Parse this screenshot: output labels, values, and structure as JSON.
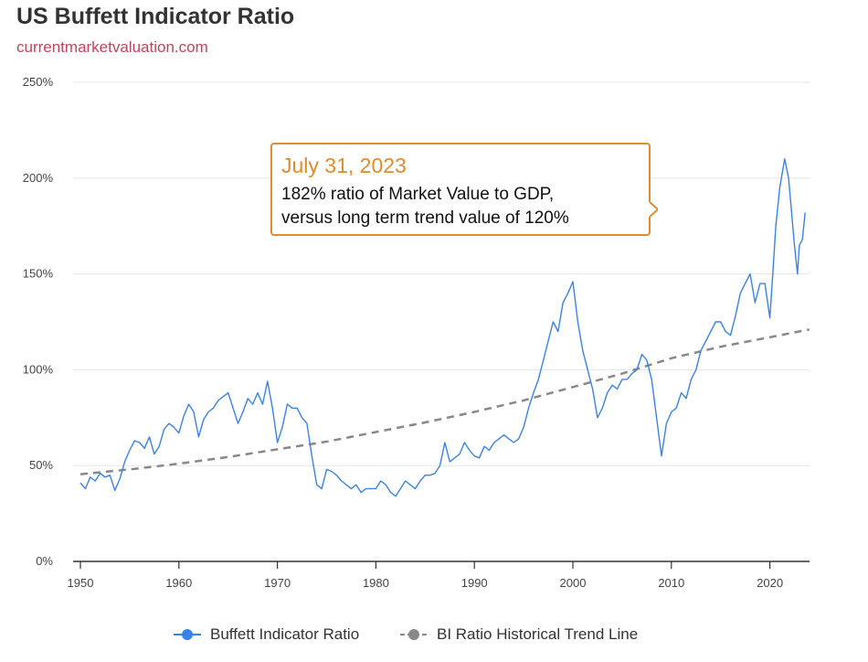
{
  "title": "US Buffett Indicator Ratio",
  "subtitle": "currentmarketvaluation.com",
  "colors": {
    "series": "#3b82e6",
    "trend": "#888888",
    "tooltip_border": "#e08b2c",
    "tooltip_date": "#e08b2c",
    "subtitle": "#c0455a",
    "grid": "#e6e6e6"
  },
  "tooltip": {
    "date": "July 31, 2023",
    "line1": "182% ratio of Market Value to GDP,",
    "line2": "versus long term trend value of 120%"
  },
  "legend": {
    "series_label": "Buffett Indicator Ratio",
    "trend_label": "BI Ratio Historical Trend Line"
  },
  "chart_data": {
    "type": "line",
    "title": "US Buffett Indicator Ratio",
    "xlabel": "",
    "ylabel": "",
    "xlim": [
      1950,
      2024
    ],
    "ylim": [
      0,
      250
    ],
    "yticks": [
      "0%",
      "50%",
      "100%",
      "150%",
      "200%",
      "250%"
    ],
    "xticks": [
      "1950",
      "1960",
      "1970",
      "1980",
      "1990",
      "2000",
      "2010",
      "2020"
    ],
    "grid": true,
    "legend_position": "bottom",
    "series": [
      {
        "name": "Buffett Indicator Ratio",
        "x": [
          1950.0,
          1950.5,
          1951.0,
          1951.5,
          1952.0,
          1952.5,
          1953.0,
          1953.5,
          1954.0,
          1954.5,
          1955.0,
          1955.5,
          1956.0,
          1956.5,
          1957.0,
          1957.5,
          1958.0,
          1958.5,
          1959.0,
          1959.5,
          1960.0,
          1960.5,
          1961.0,
          1961.5,
          1962.0,
          1962.5,
          1963.0,
          1963.5,
          1964.0,
          1964.5,
          1965.0,
          1965.5,
          1966.0,
          1966.5,
          1967.0,
          1967.5,
          1968.0,
          1968.5,
          1969.0,
          1969.5,
          1970.0,
          1970.5,
          1971.0,
          1971.5,
          1972.0,
          1972.5,
          1973.0,
          1973.5,
          1974.0,
          1974.5,
          1975.0,
          1975.5,
          1976.0,
          1976.5,
          1977.0,
          1977.5,
          1978.0,
          1978.5,
          1979.0,
          1979.5,
          1980.0,
          1980.5,
          1981.0,
          1981.5,
          1982.0,
          1982.5,
          1983.0,
          1983.5,
          1984.0,
          1984.5,
          1985.0,
          1985.5,
          1986.0,
          1986.5,
          1987.0,
          1987.5,
          1988.0,
          1988.5,
          1989.0,
          1989.5,
          1990.0,
          1990.5,
          1991.0,
          1991.5,
          1992.0,
          1992.5,
          1993.0,
          1993.5,
          1994.0,
          1994.5,
          1995.0,
          1995.5,
          1996.0,
          1996.5,
          1997.0,
          1997.5,
          1998.0,
          1998.5,
          1999.0,
          1999.5,
          2000.0,
          2000.5,
          2001.0,
          2001.5,
          2002.0,
          2002.5,
          2003.0,
          2003.5,
          2004.0,
          2004.5,
          2005.0,
          2005.5,
          2006.0,
          2006.5,
          2007.0,
          2007.5,
          2008.0,
          2008.5,
          2009.0,
          2009.5,
          2010.0,
          2010.5,
          2011.0,
          2011.5,
          2012.0,
          2012.5,
          2013.0,
          2013.5,
          2014.0,
          2014.5,
          2015.0,
          2015.5,
          2016.0,
          2016.5,
          2017.0,
          2017.5,
          2018.0,
          2018.5,
          2019.0,
          2019.5,
          2020.0,
          2020.3,
          2020.6,
          2021.0,
          2021.5,
          2021.9,
          2022.5,
          2022.8,
          2023.0,
          2023.3,
          2023.58
        ],
        "values": [
          41,
          38,
          44,
          42,
          46,
          44,
          45,
          37,
          43,
          52,
          58,
          63,
          62,
          59,
          65,
          56,
          60,
          69,
          72,
          70,
          67,
          76,
          82,
          78,
          65,
          74,
          78,
          80,
          84,
          86,
          88,
          80,
          72,
          78,
          85,
          82,
          88,
          82,
          94,
          80,
          62,
          70,
          82,
          80,
          80,
          75,
          72,
          55,
          40,
          38,
          48,
          47,
          45,
          42,
          40,
          38,
          40,
          36,
          38,
          38,
          38,
          42,
          40,
          36,
          34,
          38,
          42,
          40,
          38,
          42,
          45,
          45,
          46,
          50,
          62,
          52,
          54,
          56,
          62,
          58,
          55,
          54,
          60,
          58,
          62,
          64,
          66,
          64,
          62,
          64,
          70,
          80,
          88,
          95,
          105,
          115,
          125,
          120,
          135,
          140,
          146,
          125,
          110,
          100,
          90,
          75,
          80,
          88,
          92,
          90,
          95,
          95,
          98,
          100,
          108,
          105,
          95,
          75,
          55,
          72,
          78,
          80,
          88,
          85,
          95,
          100,
          110,
          115,
          120,
          125,
          125,
          120,
          118,
          128,
          140,
          145,
          150,
          135,
          145,
          145,
          127,
          150,
          175,
          195,
          210,
          200,
          165,
          150,
          165,
          168,
          182
        ]
      },
      {
        "name": "BI Ratio Historical Trend Line",
        "x": [
          1950,
          1955,
          1960,
          1965,
          1970,
          1975,
          1980,
          1985,
          1990,
          1995,
          2000,
          2005,
          2010,
          2015,
          2020,
          2024
        ],
        "values": [
          45.5,
          48,
          51,
          54.5,
          58.5,
          62.5,
          67.5,
          72.5,
          78,
          84,
          91,
          98,
          106,
          112,
          117,
          121
        ]
      }
    ]
  }
}
